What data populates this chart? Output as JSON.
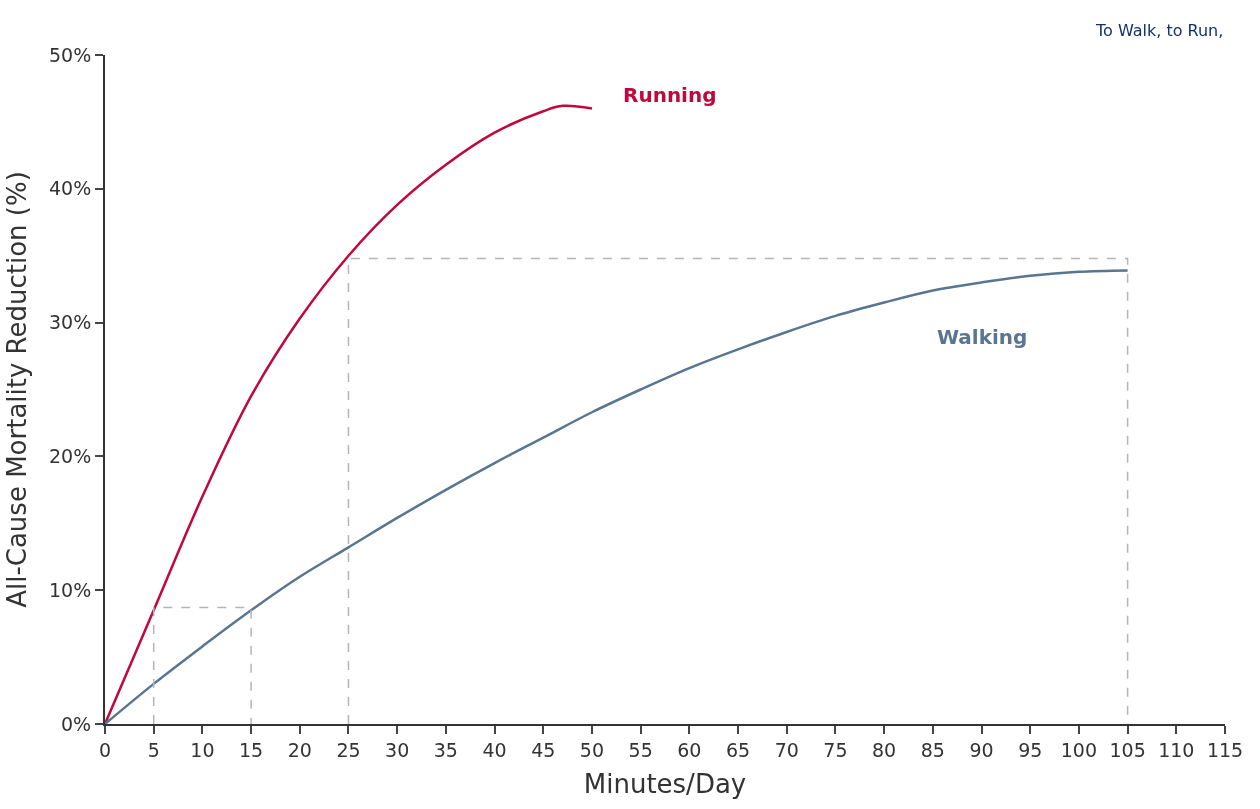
{
  "chart_data": {
    "type": "line",
    "title": "To Walk, to Run,",
    "xlabel": "Minutes/Day",
    "ylabel": "All-Cause Mortality Reduction (%)",
    "xlim": [
      0,
      115
    ],
    "xticks": [
      0,
      5,
      10,
      15,
      20,
      25,
      30,
      35,
      40,
      45,
      50,
      55,
      60,
      65,
      70,
      75,
      80,
      85,
      90,
      95,
      100,
      105,
      110,
      115
    ],
    "ylim": [
      0,
      50
    ],
    "yticks": [
      {
        "value": 0,
        "label": "0%"
      },
      {
        "value": 10,
        "label": "10%"
      },
      {
        "value": 20,
        "label": "20%"
      },
      {
        "value": 30,
        "label": "30%"
      },
      {
        "value": 40,
        "label": "40%"
      },
      {
        "value": 50,
        "label": "50%"
      }
    ],
    "legend": false,
    "marker": "none",
    "line_style": "solid",
    "series": [
      {
        "name": "Running",
        "color": "#c0083c",
        "x": [
          0,
          5,
          10,
          15,
          20,
          25,
          30,
          35,
          40,
          45,
          47,
          50
        ],
        "values": [
          0,
          8.5,
          17.0,
          24.5,
          30.3,
          35.0,
          38.8,
          41.8,
          44.2,
          45.8,
          46.2,
          46.0
        ]
      },
      {
        "name": "Walking",
        "color": "#587591",
        "x": [
          0,
          5,
          10,
          15,
          20,
          25,
          30,
          35,
          40,
          45,
          50,
          55,
          60,
          65,
          70,
          75,
          80,
          85,
          90,
          95,
          100,
          105
        ],
        "values": [
          0,
          3.0,
          5.8,
          8.5,
          11.0,
          13.2,
          15.4,
          17.5,
          19.5,
          21.4,
          23.3,
          25.0,
          26.6,
          28.0,
          29.3,
          30.5,
          31.5,
          32.4,
          33.0,
          33.5,
          33.8,
          33.9
        ]
      },
      {
        "color": "#b4b4bc",
        "line_style": "dashed",
        "x": [
          5,
          5,
          15,
          15
        ],
        "values": [
          0,
          8.7,
          8.7,
          0
        ]
      },
      {
        "color": "#b4b4bc",
        "line_style": "dashed",
        "x": [
          25,
          25,
          105,
          105
        ],
        "values": [
          0,
          34.8,
          34.8,
          0
        ]
      }
    ]
  }
}
